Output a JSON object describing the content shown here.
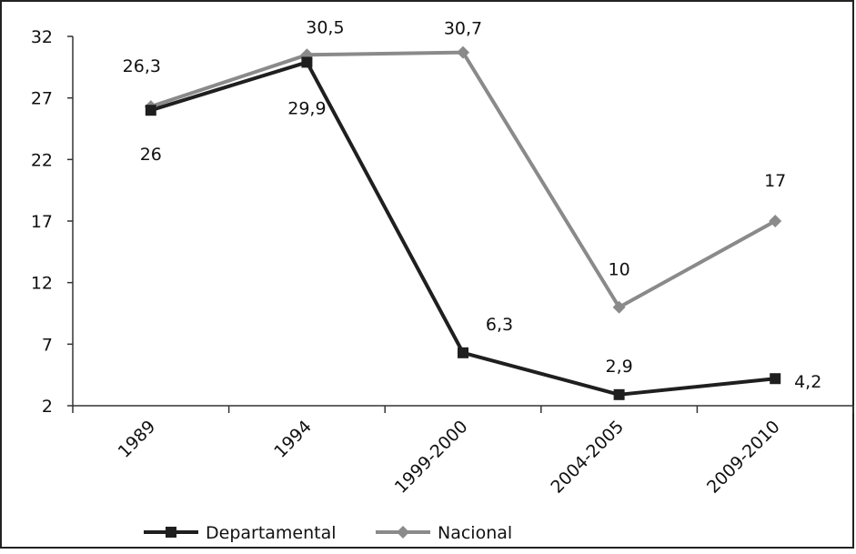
{
  "chart_data": {
    "type": "line",
    "title": "",
    "xlabel": "",
    "ylabel": "",
    "categories": [
      "1989",
      "1994",
      "1999-2000",
      "2004-2005",
      "2009-2010"
    ],
    "ylim": [
      2,
      32
    ],
    "yticks": [
      "2",
      "7",
      "12",
      "17",
      "22",
      "27",
      "32"
    ],
    "grid": false,
    "legend_position": "bottom",
    "series": [
      {
        "name": "Departamental",
        "values": [
          26,
          29.9,
          6.3,
          2.9,
          4.2
        ],
        "labels": [
          "26",
          "29,9",
          "6,3",
          "2,9",
          "4,2"
        ],
        "color": "#1f1f1f",
        "marker": "square"
      },
      {
        "name": "Nacional",
        "values": [
          26.3,
          30.5,
          30.7,
          10,
          17
        ],
        "labels": [
          "26,3",
          "30,5",
          "30,7",
          "10",
          "17"
        ],
        "color": "#8a8a8a",
        "marker": "diamond"
      }
    ]
  }
}
